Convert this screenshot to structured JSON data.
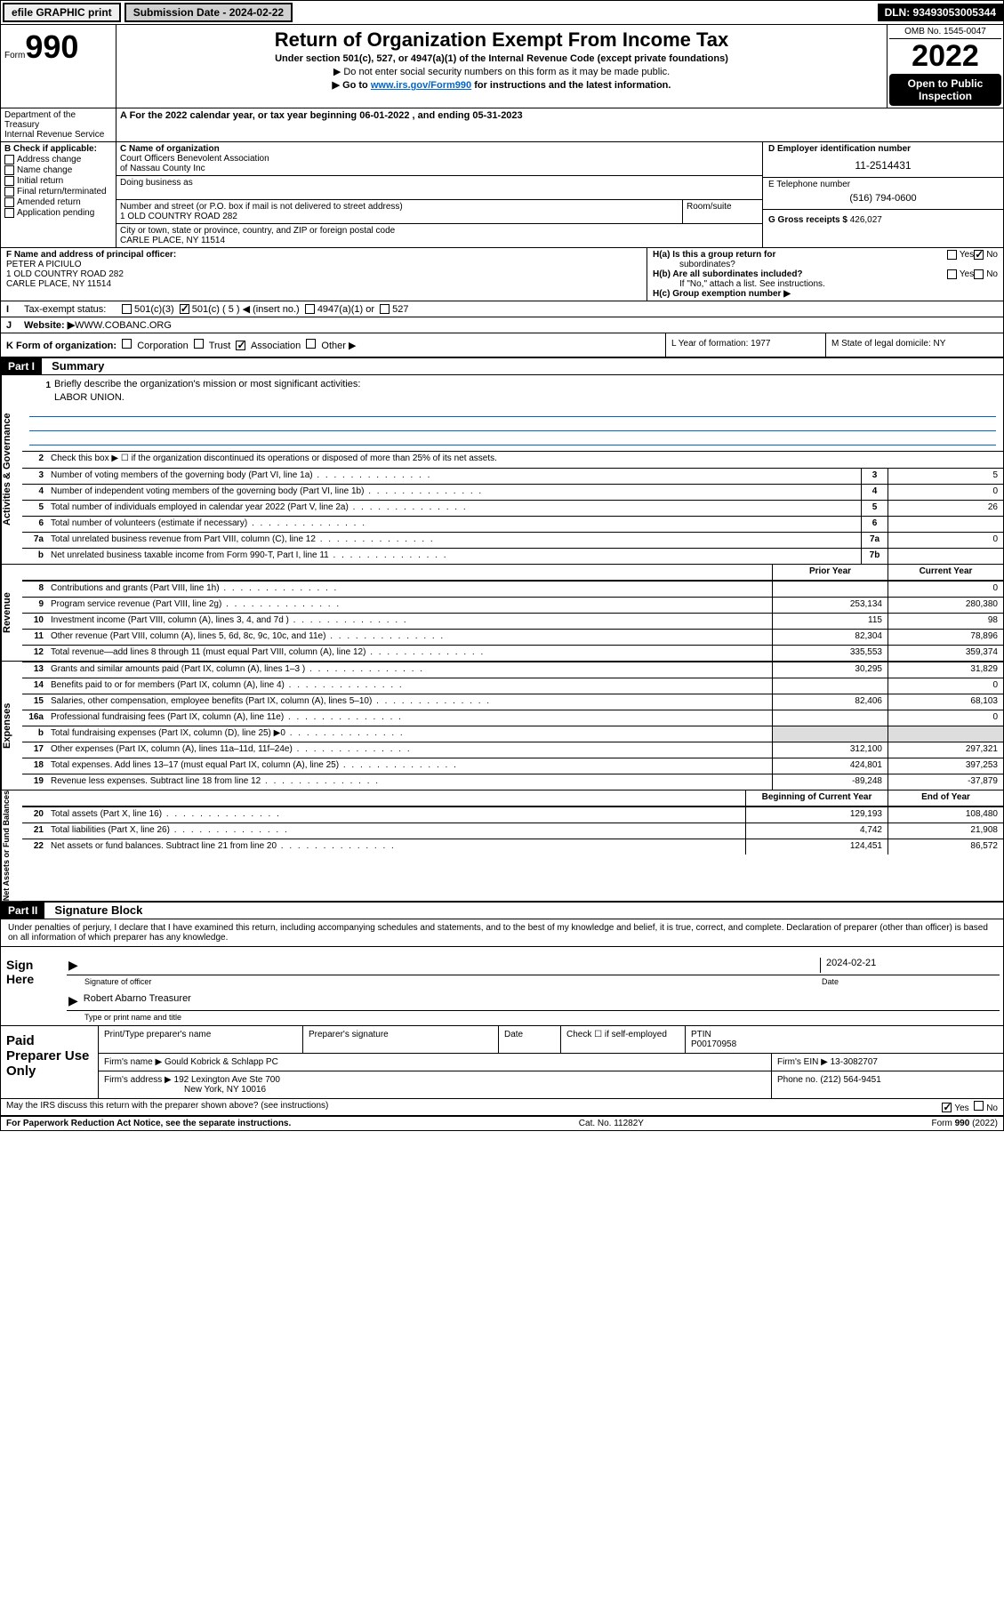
{
  "top": {
    "efile": "efile GRAPHIC print",
    "sub_label": "Submission Date - 2024-02-22",
    "dln": "DLN: 93493053005344"
  },
  "header": {
    "form_label": "Form",
    "form_num": "990",
    "title": "Return of Organization Exempt From Income Tax",
    "sub1": "Under section 501(c), 527, or 4947(a)(1) of the Internal Revenue Code (except private foundations)",
    "sub2": "▶ Do not enter social security numbers on this form as it may be made public.",
    "sub3_pre": "▶ Go to ",
    "sub3_link": "www.irs.gov/Form990",
    "sub3_post": " for instructions and the latest information.",
    "omb": "OMB No. 1545-0047",
    "year": "2022",
    "open1": "Open to Public",
    "open2": "Inspection",
    "dept": "Department of the Treasury",
    "irs": "Internal Revenue Service"
  },
  "period": {
    "label_a": "A For the 2022 calendar year, or tax year beginning ",
    "begin": "06-01-2022",
    "mid": " , and ending ",
    "end": "05-31-2023"
  },
  "box_b": {
    "label": "B Check if applicable:",
    "items": [
      "Address change",
      "Name change",
      "Initial return",
      "Final return/terminated",
      "Amended return",
      "Application pending"
    ]
  },
  "box_c": {
    "label": "C Name of organization",
    "name1": "Court Officers Benevolent Association",
    "name2": "of Nassau County Inc",
    "dba_label": "Doing business as",
    "addr_label": "Number and street (or P.O. box if mail is not delivered to street address)",
    "room_label": "Room/suite",
    "addr": "1 OLD COUNTRY ROAD 282",
    "city_label": "City or town, state or province, country, and ZIP or foreign postal code",
    "city": "CARLE PLACE, NY  11514"
  },
  "box_d": {
    "label": "D Employer identification number",
    "ein": "11-2514431"
  },
  "box_e": {
    "label": "E Telephone number",
    "phone": "(516) 794-0600"
  },
  "box_g": {
    "label": "G Gross receipts $ ",
    "val": "426,027"
  },
  "box_f": {
    "label": "F  Name and address of principal officer:",
    "name": "PETER A PICIULO",
    "addr1": "1 OLD COUNTRY ROAD 282",
    "addr2": "CARLE PLACE, NY  11514"
  },
  "box_h": {
    "ha": "H(a)  Is this a group return for",
    "ha2": "subordinates?",
    "hb": "H(b)  Are all subordinates included?",
    "hb2": "If \"No,\" attach a list. See instructions.",
    "hc": "H(c)  Group exemption number ▶"
  },
  "row_i": {
    "label": "I",
    "text": "Tax-exempt status:",
    "opt1": "501(c)(3)",
    "opt2": "501(c) ( 5 ) ◀ (insert no.)",
    "opt3": "4947(a)(1) or",
    "opt4": "527"
  },
  "row_j": {
    "label": "J",
    "text": "Website: ▶",
    "val": " WWW.COBANC.ORG"
  },
  "row_k": {
    "label": "K Form of organization:",
    "opts": [
      "Corporation",
      "Trust",
      "Association",
      "Other ▶"
    ],
    "checked_idx": 2,
    "l": "L Year of formation: 1977",
    "m": "M State of legal domicile: NY"
  },
  "part1": {
    "hdr": "Part I",
    "title": "Summary",
    "line1": "Briefly describe the organization's mission or most significant activities:",
    "mission": "LABOR UNION.",
    "line2": "Check this box ▶ ☐  if the organization discontinued its operations or disposed of more than 25% of its net assets.",
    "sections": [
      {
        "label": "Activities & Governance",
        "rows": [
          {
            "n": "3",
            "t": "Number of voting members of the governing body (Part VI, line 1a)",
            "box": "3",
            "v": "5"
          },
          {
            "n": "4",
            "t": "Number of independent voting members of the governing body (Part VI, line 1b)",
            "box": "4",
            "v": "0"
          },
          {
            "n": "5",
            "t": "Total number of individuals employed in calendar year 2022 (Part V, line 2a)",
            "box": "5",
            "v": "26"
          },
          {
            "n": "6",
            "t": "Total number of volunteers (estimate if necessary)",
            "box": "6",
            "v": ""
          },
          {
            "n": "7a",
            "t": "Total unrelated business revenue from Part VIII, column (C), line 12",
            "box": "7a",
            "v": "0"
          },
          {
            "n": "b",
            "t": "Net unrelated business taxable income from Form 990-T, Part I, line 11",
            "box": "7b",
            "v": ""
          }
        ]
      },
      {
        "label": "Revenue",
        "header": true,
        "rows": [
          {
            "n": "8",
            "t": "Contributions and grants (Part VIII, line 1h)",
            "py": "",
            "cy": "0"
          },
          {
            "n": "9",
            "t": "Program service revenue (Part VIII, line 2g)",
            "py": "253,134",
            "cy": "280,380"
          },
          {
            "n": "10",
            "t": "Investment income (Part VIII, column (A), lines 3, 4, and 7d )",
            "py": "115",
            "cy": "98"
          },
          {
            "n": "11",
            "t": "Other revenue (Part VIII, column (A), lines 5, 6d, 8c, 9c, 10c, and 11e)",
            "py": "82,304",
            "cy": "78,896"
          },
          {
            "n": "12",
            "t": "Total revenue—add lines 8 through 11 (must equal Part VIII, column (A), line 12)",
            "py": "335,553",
            "cy": "359,374"
          }
        ]
      },
      {
        "label": "Expenses",
        "rows": [
          {
            "n": "13",
            "t": "Grants and similar amounts paid (Part IX, column (A), lines 1–3 )",
            "py": "30,295",
            "cy": "31,829"
          },
          {
            "n": "14",
            "t": "Benefits paid to or for members (Part IX, column (A), line 4)",
            "py": "",
            "cy": "0"
          },
          {
            "n": "15",
            "t": "Salaries, other compensation, employee benefits (Part IX, column (A), lines 5–10)",
            "py": "82,406",
            "cy": "68,103"
          },
          {
            "n": "16a",
            "t": "Professional fundraising fees (Part IX, column (A), line 11e)",
            "py": "",
            "cy": "0"
          },
          {
            "n": "b",
            "t": "Total fundraising expenses (Part IX, column (D), line 25) ▶0",
            "py": "shade",
            "cy": "shade"
          },
          {
            "n": "17",
            "t": "Other expenses (Part IX, column (A), lines 11a–11d, 11f–24e)",
            "py": "312,100",
            "cy": "297,321"
          },
          {
            "n": "18",
            "t": "Total expenses. Add lines 13–17 (must equal Part IX, column (A), line 25)",
            "py": "424,801",
            "cy": "397,253"
          },
          {
            "n": "19",
            "t": "Revenue less expenses. Subtract line 18 from line 12",
            "py": "-89,248",
            "cy": "-37,879"
          }
        ]
      },
      {
        "label": "Net Assets or Fund Balances",
        "header2": true,
        "rows": [
          {
            "n": "20",
            "t": "Total assets (Part X, line 16)",
            "py": "129,193",
            "cy": "108,480"
          },
          {
            "n": "21",
            "t": "Total liabilities (Part X, line 26)",
            "py": "4,742",
            "cy": "21,908"
          },
          {
            "n": "22",
            "t": "Net assets or fund balances. Subtract line 21 from line 20",
            "py": "124,451",
            "cy": "86,572"
          }
        ]
      }
    ],
    "col_hdr_py": "Prior Year",
    "col_hdr_cy": "Current Year",
    "col_hdr_boy": "Beginning of Current Year",
    "col_hdr_eoy": "End of Year"
  },
  "part2": {
    "hdr": "Part II",
    "title": "Signature Block",
    "decl": "Under penalties of perjury, I declare that I have examined this return, including accompanying schedules and statements, and to the best of my knowledge and belief, it is true, correct, and complete. Declaration of preparer (other than officer) is based on all information of which preparer has any knowledge.",
    "sign_here": "Sign Here",
    "sig_officer": "Signature of officer",
    "date": "Date",
    "sig_date": "2024-02-21",
    "name_title": "Robert Abarno  Treasurer",
    "name_label": "Type or print name and title",
    "paid": "Paid Preparer Use Only",
    "prep_name_label": "Print/Type preparer's name",
    "prep_sig_label": "Preparer's signature",
    "check_self": "Check ☐ if self-employed",
    "ptin_label": "PTIN",
    "ptin": "P00170958",
    "firm_name_label": "Firm's name    ▶ ",
    "firm_name": "Gould Kobrick & Schlapp PC",
    "firm_ein_label": "Firm's EIN ▶ ",
    "firm_ein": "13-3082707",
    "firm_addr_label": "Firm's address ▶ ",
    "firm_addr1": "192 Lexington Ave Ste 700",
    "firm_addr2": "New York, NY  10016",
    "phone_label": "Phone no. ",
    "phone": "(212) 564-9451",
    "may_discuss": "May the IRS discuss this return with the preparer shown above? (see instructions)",
    "paperwork": "For Paperwork Reduction Act Notice, see the separate instructions.",
    "cat": "Cat. No. 11282Y",
    "form_foot": "Form 990 (2022)"
  },
  "yesno": {
    "yes": "Yes",
    "no": "No"
  }
}
